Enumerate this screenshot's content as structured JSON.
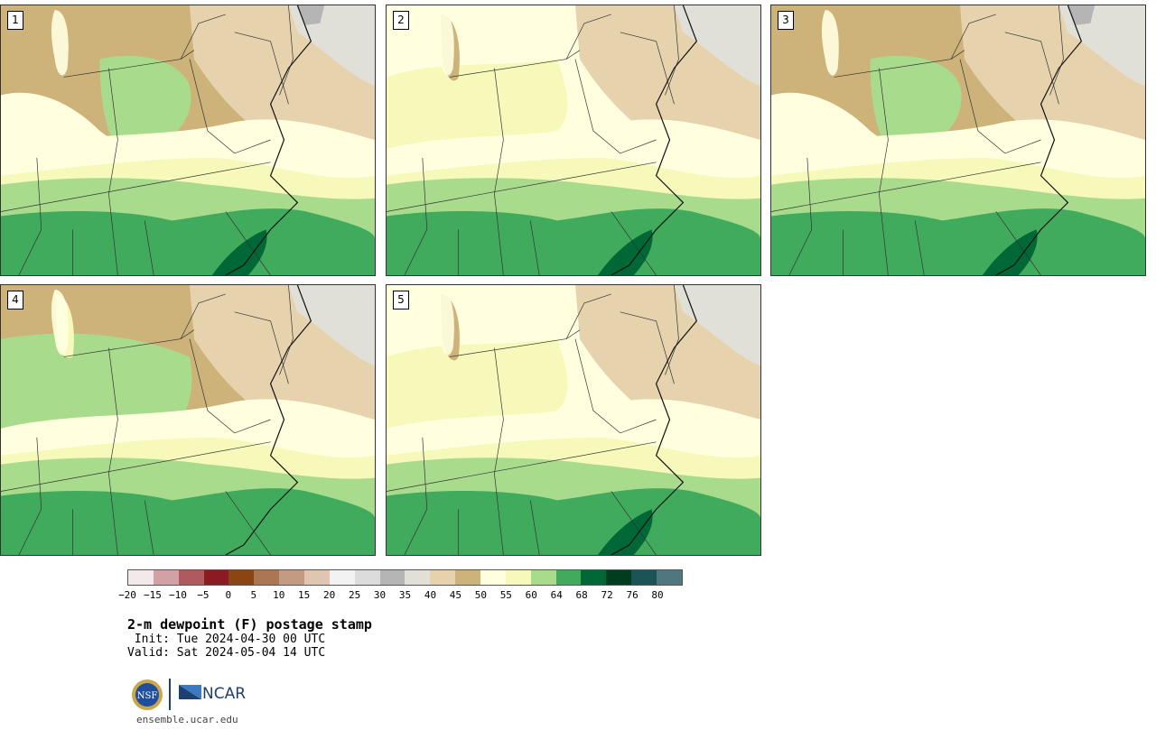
{
  "panels": [
    {
      "number": "1",
      "variant": 1
    },
    {
      "number": "2",
      "variant": 2
    },
    {
      "number": "3",
      "variant": 3
    },
    {
      "number": "4",
      "variant": 4
    },
    {
      "number": "5",
      "variant": 5
    }
  ],
  "colorbar": {
    "colors": [
      "#f3e9ea",
      "#d3a0a6",
      "#b05a60",
      "#8b1a22",
      "#8a4512",
      "#ad7652",
      "#c49b82",
      "#e0c6b2",
      "#f2f2f2",
      "#dcdcdc",
      "#b5b5b5",
      "#e0e0d8",
      "#e6d3ae",
      "#cdb27a",
      "#ffffe0",
      "#f6f9b9",
      "#a8dc8c",
      "#41ab5d",
      "#006837",
      "#003d1f",
      "#1c5357",
      "#4e787d"
    ],
    "tick_labels": [
      "−20",
      "−15",
      "−10",
      "−5",
      "0",
      "5",
      "10",
      "15",
      "20",
      "25",
      "30",
      "35",
      "40",
      "45",
      "50",
      "55",
      "60",
      "64",
      "68",
      "72",
      "76",
      "80"
    ]
  },
  "title": "2-m dewpoint (F) postage stamp",
  "init": " Init: Tue 2024-04-30 00 UTC",
  "valid": "Valid: Sat 2024-05-04 14 UTC",
  "logos": {
    "nsf": "NSF",
    "ncar": "NCAR"
  },
  "site": "ensemble.ucar.edu"
}
